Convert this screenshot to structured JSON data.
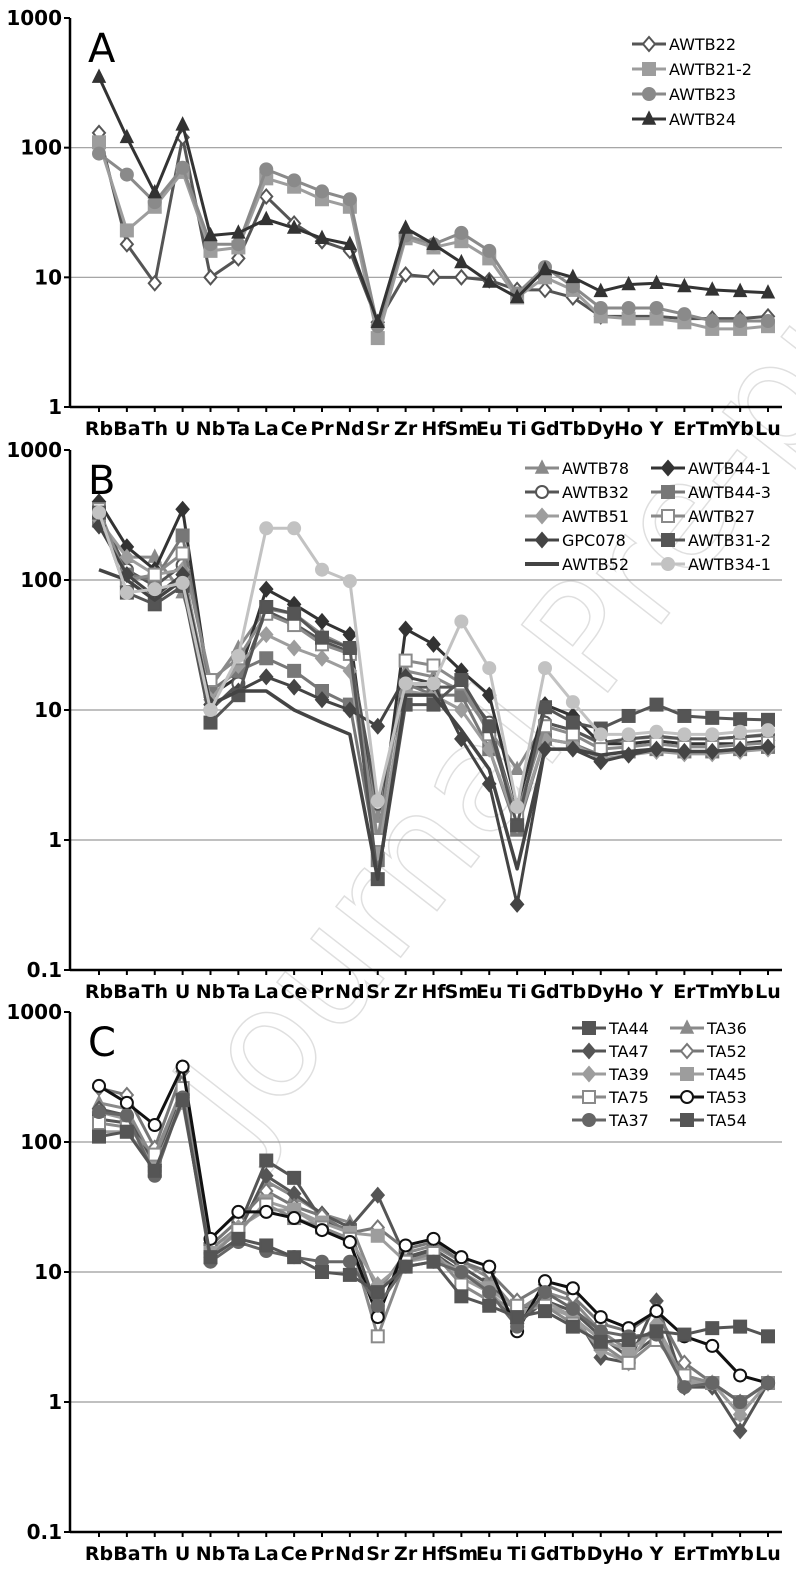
{
  "watermark": "Journal Pre-proof",
  "chart_data": [
    {
      "type": "line",
      "panel": "A",
      "y_scale": "log",
      "ylim": [
        1,
        1000
      ],
      "y_ticks": [
        1,
        10,
        100,
        1000
      ],
      "y_tick_labels": [
        "1",
        "10",
        "100",
        "1000"
      ],
      "categories": [
        "Rb",
        "Ba",
        "Th",
        "U",
        "Nb",
        "Ta",
        "La",
        "Ce",
        "Pr",
        "Nd",
        "Sr",
        "Zr",
        "Hf",
        "Sm",
        "Eu",
        "Ti",
        "Gd",
        "Tb",
        "Dy",
        "Ho",
        "Y",
        "Er",
        "Tm",
        "Yb",
        "Lu"
      ],
      "grid": true,
      "legend_position": "top-right",
      "series": [
        {
          "name": "AWTB22",
          "color": "#555555",
          "marker": "diamond-open",
          "values": [
            130,
            18,
            9,
            120,
            10,
            14,
            42,
            26,
            19,
            16,
            4.5,
            10.5,
            10,
            10,
            9.5,
            8,
            8,
            7,
            5,
            5,
            5,
            4.8,
            4.8,
            4.8,
            5
          ]
        },
        {
          "name": "AWTB21-2",
          "color": "#9d9d9d",
          "marker": "square",
          "values": [
            110,
            23,
            35,
            65,
            16,
            17,
            58,
            50,
            40,
            35,
            3.4,
            20,
            17,
            19,
            14,
            7,
            10,
            8,
            5,
            4.8,
            4.8,
            4.5,
            4,
            4,
            4.2
          ]
        },
        {
          "name": "AWTB23",
          "color": "#8a8a8a",
          "marker": "circle",
          "values": [
            90,
            62,
            38,
            70,
            18,
            18,
            68,
            56,
            46,
            40,
            4.2,
            21,
            18,
            22,
            16,
            7.5,
            12,
            8.5,
            5.8,
            5.8,
            5.8,
            5.2,
            4.6,
            4.6,
            4.6
          ]
        },
        {
          "name": "AWTB24",
          "color": "#333333",
          "marker": "triangle",
          "values": [
            350,
            120,
            45,
            150,
            21,
            22,
            28,
            24,
            20,
            18,
            4.5,
            24,
            18,
            13,
            9.2,
            7,
            11.5,
            10,
            7.8,
            8.8,
            9,
            8.5,
            8,
            7.8,
            7.6
          ]
        }
      ]
    },
    {
      "type": "line",
      "panel": "B",
      "y_scale": "log",
      "ylim": [
        0.1,
        1000
      ],
      "y_ticks": [
        0.1,
        1,
        10,
        100,
        1000
      ],
      "y_tick_labels": [
        "0.1",
        "1",
        "10",
        "100",
        "1000"
      ],
      "categories": [
        "Rb",
        "Ba",
        "Th",
        "U",
        "Nb",
        "Ta",
        "La",
        "Ce",
        "Pr",
        "Nd",
        "Sr",
        "Zr",
        "Hf",
        "Sm",
        "Eu",
        "Ti",
        "Gd",
        "Tb",
        "Dy",
        "Ho",
        "Y",
        "Er",
        "Tm",
        "Yb",
        "Lu"
      ],
      "grid": true,
      "legend_position": "top-right",
      "series": [
        {
          "name": "AWTB78",
          "color": "#8a8a8a",
          "marker": "triangle",
          "values": [
            280,
            150,
            150,
            80,
            15,
            30,
            60,
            55,
            38,
            30,
            1.5,
            20,
            18,
            14,
            7,
            3.5,
            8,
            7,
            5.5,
            6,
            6.2,
            6,
            6,
            6.2,
            6.5
          ]
        },
        {
          "name": "AWTB44-1",
          "color": "#333333",
          "marker": "diamond",
          "values": [
            400,
            180,
            120,
            350,
            13,
            18,
            85,
            65,
            48,
            38,
            0.9,
            42,
            32,
            20,
            13,
            1.8,
            11,
            9,
            5.5,
            5.5,
            5.8,
            5.5,
            5.5,
            5.5,
            5.8
          ]
        },
        {
          "name": "AWTB32",
          "color": "#555555",
          "marker": "circle-open",
          "values": [
            320,
            120,
            90,
            130,
            10,
            16,
            58,
            46,
            34,
            28,
            1.9,
            15,
            15,
            15,
            8,
            1.5,
            8,
            7,
            5.6,
            6,
            6.3,
            6,
            6,
            6.2,
            6.4
          ]
        },
        {
          "name": "AWTB44-3",
          "color": "#777777",
          "marker": "square",
          "values": [
            300,
            110,
            100,
            220,
            14,
            20,
            25,
            20,
            14,
            11,
            0.7,
            16,
            13,
            13,
            5,
            1.2,
            6,
            5.5,
            4.5,
            4.8,
            5,
            4.8,
            4.8,
            5,
            5.2
          ]
        },
        {
          "name": "AWTB51",
          "color": "#9d9d9d",
          "marker": "diamond",
          "values": [
            290,
            150,
            110,
            120,
            12,
            22,
            38,
            30,
            25,
            20,
            0.8,
            14,
            13,
            10,
            5,
            1.3,
            6,
            5.5,
            4.2,
            4.5,
            4.8,
            4.6,
            4.6,
            4.8,
            5
          ]
        },
        {
          "name": "AWTB27",
          "color": "#8a8a8a",
          "marker": "square-open",
          "values": [
            350,
            100,
            110,
            160,
            17,
            25,
            55,
            45,
            32,
            27,
            1,
            24,
            22,
            16,
            6.5,
            1.6,
            7.5,
            6.5,
            5,
            5.2,
            5.5,
            5.2,
            5.2,
            5.4,
            5.6
          ]
        },
        {
          "name": "GPC078",
          "color": "#444444",
          "marker": "diamond",
          "values": [
            260,
            110,
            75,
            110,
            11,
            14,
            18,
            15,
            12,
            10,
            7.5,
            18,
            16,
            6,
            2.7,
            0.32,
            5,
            5,
            4,
            4.5,
            5,
            4.8,
            4.8,
            5,
            5.2
          ]
        },
        {
          "name": "AWTB31-2",
          "color": "#555555",
          "marker": "square",
          "values": [
            330,
            80,
            65,
            90,
            8,
            13,
            62,
            55,
            36,
            30,
            0.5,
            11,
            11,
            17,
            7.5,
            1.3,
            10.5,
            8,
            7.2,
            9,
            11,
            9,
            8.7,
            8.5,
            8.4
          ]
        },
        {
          "name": "AWTB52",
          "color": "#444444",
          "marker": "none",
          "values": [
            120,
            100,
            70,
            100,
            11,
            14,
            14,
            10,
            8,
            6.5,
            0.5,
            13,
            13,
            7,
            3.5,
            0.6,
            5,
            5,
            4.5,
            4.8,
            5,
            4.8,
            4.8,
            5,
            5.2
          ]
        },
        {
          "name": "AWTB34-1",
          "color": "#c2c2c2",
          "marker": "circle",
          "values": [
            330,
            80,
            85,
            95,
            10,
            26,
            250,
            250,
            120,
            98,
            2,
            16,
            16,
            48,
            21,
            1.8,
            21,
            11.5,
            6.5,
            6.5,
            6.8,
            6.5,
            6.5,
            6.8,
            7
          ]
        }
      ]
    },
    {
      "type": "line",
      "panel": "C",
      "y_scale": "log",
      "ylim": [
        0.1,
        1000
      ],
      "y_ticks": [
        0.1,
        1,
        10,
        100,
        1000
      ],
      "y_tick_labels": [
        "0.1",
        "1",
        "10",
        "100",
        "1000"
      ],
      "categories": [
        "Rb",
        "Ba",
        "Th",
        "U",
        "Nb",
        "Ta",
        "La",
        "Ce",
        "Pr",
        "Nd",
        "Sr",
        "Zr",
        "Hf",
        "Sm",
        "Eu",
        "Ti",
        "Gd",
        "Tb",
        "Dy",
        "Ho",
        "Y",
        "Er",
        "Tm",
        "Yb",
        "Lu"
      ],
      "grid": true,
      "legend_position": "top-right",
      "series": [
        {
          "name": "TA44",
          "color": "#555555",
          "marker": "square",
          "values": [
            150,
            140,
            75,
            230,
            15,
            22,
            72,
            53,
            25,
            21,
            5,
            13,
            15,
            11,
            8,
            5,
            6,
            5,
            3.2,
            2.2,
            3.2,
            1.4,
            1.4,
            1.0,
            1.4
          ]
        },
        {
          "name": "TA36",
          "color": "#8a8a8a",
          "marker": "triangle",
          "values": [
            200,
            180,
            70,
            250,
            15,
            22,
            50,
            38,
            28,
            24,
            7,
            14,
            16,
            12,
            9,
            5,
            7,
            6,
            3.5,
            2.5,
            3.8,
            1.6,
            1.4,
            0.8,
            1.4
          ]
        },
        {
          "name": "TA47",
          "color": "#555555",
          "marker": "diamond",
          "values": [
            180,
            160,
            65,
            230,
            14,
            20,
            55,
            40,
            28,
            22,
            39,
            13,
            14,
            10,
            7,
            4,
            6,
            5,
            2.2,
            2,
            6,
            1.3,
            1.3,
            0.6,
            1.4
          ]
        },
        {
          "name": "TA52",
          "color": "#777777",
          "marker": "diamond-open",
          "values": [
            260,
            230,
            90,
            350,
            16,
            25,
            42,
            32,
            27,
            20,
            22,
            15,
            17,
            12,
            10,
            6,
            8,
            6.5,
            4,
            3.5,
            5,
            2,
            1.4,
            1.0,
            1.4
          ]
        },
        {
          "name": "TA39",
          "color": "#9d9d9d",
          "marker": "diamond",
          "values": [
            170,
            150,
            60,
            220,
            13,
            22,
            30,
            30,
            22,
            18,
            8,
            12,
            14,
            9,
            7,
            4.5,
            6,
            4.5,
            2.5,
            2,
            4,
            1.4,
            1.4,
            0.8,
            1.4
          ]
        },
        {
          "name": "TA45",
          "color": "#9d9d9d",
          "marker": "square",
          "values": [
            120,
            120,
            65,
            200,
            14,
            20,
            35,
            30,
            24,
            20,
            19,
            12,
            13,
            10,
            7.5,
            5,
            5.5,
            4.5,
            3,
            2.5,
            3.5,
            1.5,
            1.4,
            1.0,
            1.4
          ]
        },
        {
          "name": "TA75",
          "color": "#8a8a8a",
          "marker": "square-open",
          "values": [
            140,
            130,
            80,
            260,
            13,
            21,
            33,
            26,
            22,
            18,
            3.2,
            12,
            14,
            8,
            6,
            5.5,
            5.5,
            4,
            2.8,
            2,
            3,
            1.6,
            1.4,
            1.0,
            1.4
          ]
        },
        {
          "name": "TA53",
          "color": "#111111",
          "marker": "circle-open",
          "values": [
            270,
            200,
            135,
            380,
            18,
            29,
            29,
            26,
            21,
            17,
            4.5,
            16,
            18,
            13,
            11,
            3.5,
            8.5,
            7.5,
            4.5,
            3.7,
            5,
            3.2,
            2.7,
            1.6,
            1.4
          ]
        },
        {
          "name": "TA37",
          "color": "#666666",
          "marker": "circle",
          "values": [
            170,
            160,
            55,
            220,
            12,
            17,
            14.5,
            13,
            12,
            12,
            5.5,
            11,
            12,
            10,
            7,
            3.8,
            7,
            5.2,
            3.5,
            3.2,
            3.3,
            1.3,
            1.4,
            1.0,
            1.4
          ]
        },
        {
          "name": "TA54",
          "color": "#555555",
          "marker": "square",
          "values": [
            110,
            120,
            60,
            210,
            13,
            18,
            16,
            13,
            10,
            9.5,
            7,
            11,
            12,
            6.5,
            5.5,
            4.5,
            5,
            3.8,
            2.9,
            3,
            3.5,
            3.3,
            3.7,
            3.8,
            3.2
          ]
        }
      ]
    }
  ]
}
